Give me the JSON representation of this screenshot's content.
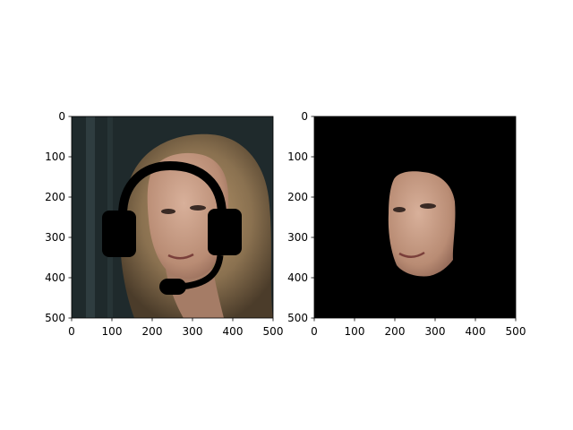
{
  "chart_data": [
    {
      "type": "image",
      "title": "",
      "description_id": "left",
      "xlim": [
        0,
        500
      ],
      "ylim": [
        500,
        0
      ],
      "xticks": [
        0,
        100,
        200,
        300,
        400,
        500
      ],
      "yticks": [
        0,
        100,
        200,
        300,
        400,
        500
      ],
      "xtick_labels": [
        "0",
        "100",
        "200",
        "300",
        "400",
        "500"
      ],
      "ytick_labels": [
        "0",
        "100",
        "200",
        "300",
        "400",
        "500"
      ],
      "content": "portrait with headset overlay"
    },
    {
      "type": "image",
      "title": "",
      "description_id": "right",
      "xlim": [
        0,
        500
      ],
      "ylim": [
        500,
        0
      ],
      "xticks": [
        0,
        100,
        200,
        300,
        400,
        500
      ],
      "yticks": [
        0,
        100,
        200,
        300,
        400,
        500
      ],
      "xtick_labels": [
        "0",
        "100",
        "200",
        "300",
        "400",
        "500"
      ],
      "ytick_labels": [
        "0",
        "100",
        "200",
        "300",
        "400",
        "500"
      ],
      "content": "face mask on black background"
    }
  ],
  "colors": {
    "background": "#ffffff",
    "axis": "#000000",
    "mask_bg": "#000000",
    "hair": "#8a7150",
    "skin": "#c49a80",
    "backdrop": "#1f2a2c"
  }
}
